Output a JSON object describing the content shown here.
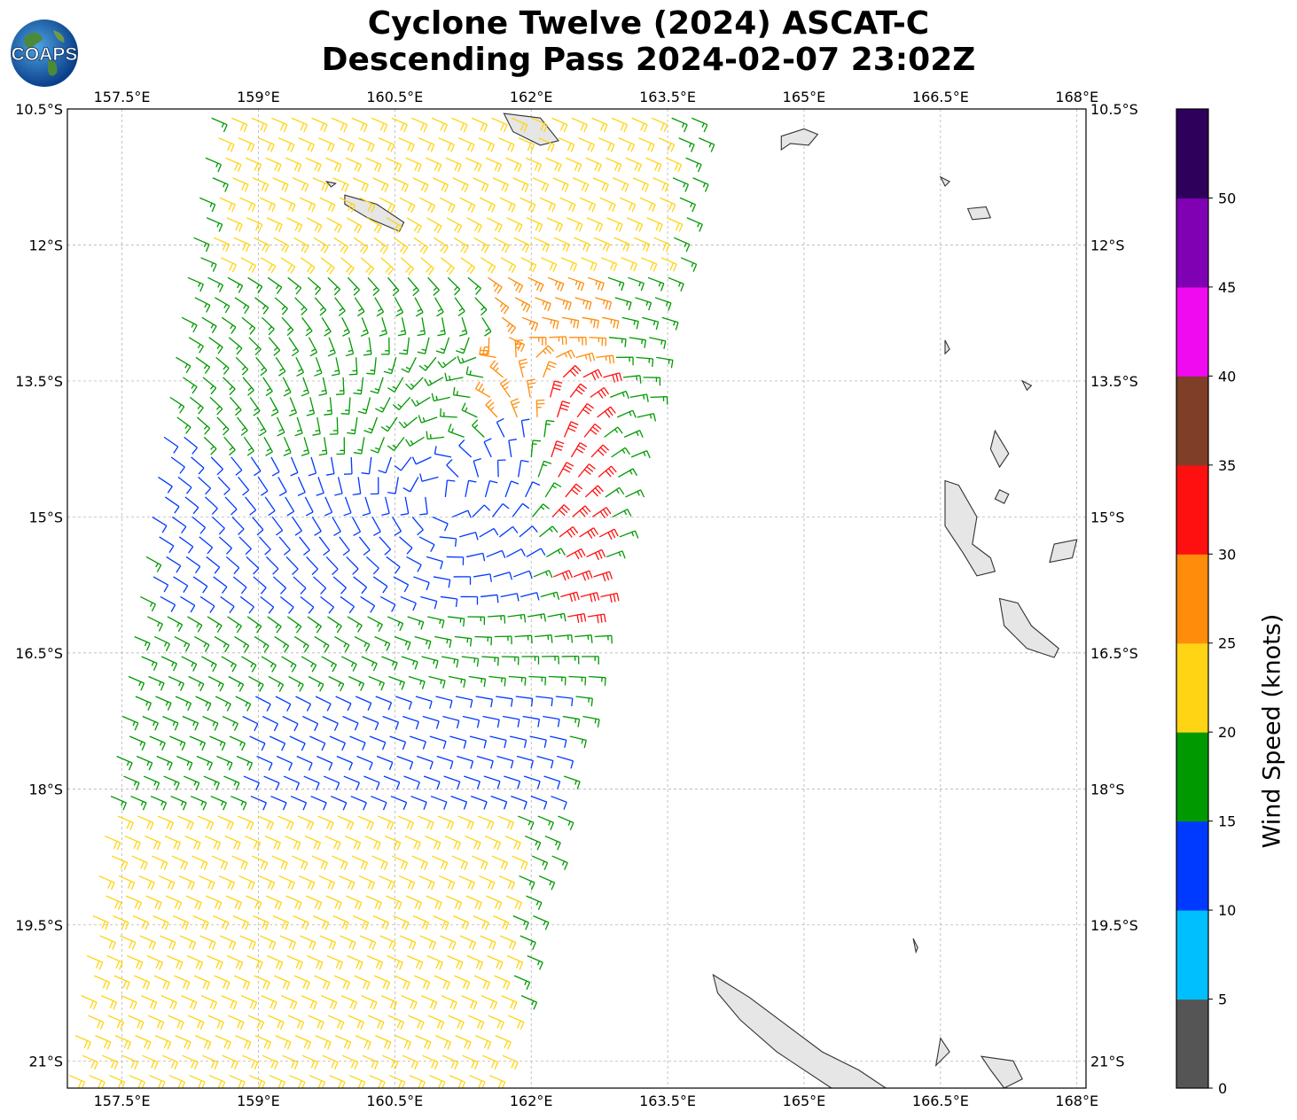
{
  "header": {
    "title_line1": "Cyclone Twelve (2024) ASCAT-C",
    "title_line2": "Descending Pass 2024-02-07 23:02Z",
    "logo_text": "COAPS"
  },
  "map": {
    "lon_range": [
      156.9,
      168.1
    ],
    "lat_range": [
      -21.3,
      -10.5
    ],
    "lon_ticks": [
      "157.5°E",
      "159°E",
      "160.5°E",
      "162°E",
      "163.5°E",
      "165°E",
      "166.5°E",
      "168°E"
    ],
    "lat_ticks": [
      "10.5°S",
      "12°S",
      "13.5°S",
      "15°S",
      "16.5°S",
      "18°S",
      "19.5°S",
      "21°S"
    ],
    "gridlines": true,
    "land_color": "#e6e6e6",
    "coastline_color": "#333333"
  },
  "colorbar": {
    "label": "Wind Speed (knots)",
    "tick_labels": [
      "0",
      "5",
      "10",
      "15",
      "20",
      "25",
      "30",
      "35",
      "40",
      "45",
      "50"
    ],
    "bins": [
      {
        "min": 0,
        "max": 5,
        "color": "#555555"
      },
      {
        "min": 5,
        "max": 10,
        "color": "#00bfff"
      },
      {
        "min": 10,
        "max": 15,
        "color": "#0039ff"
      },
      {
        "min": 15,
        "max": 20,
        "color": "#009900"
      },
      {
        "min": 20,
        "max": 25,
        "color": "#ffd414"
      },
      {
        "min": 25,
        "max": 30,
        "color": "#ff8c0a"
      },
      {
        "min": 30,
        "max": 35,
        "color": "#ff1010"
      },
      {
        "min": 35,
        "max": 40,
        "color": "#7f3e28"
      },
      {
        "min": 40,
        "max": 45,
        "color": "#f00af0"
      },
      {
        "min": 45,
        "max": 50,
        "color": "#8000b4"
      },
      {
        "min": 50,
        "max": 55,
        "color": "#2e005c"
      }
    ]
  },
  "chart_data": {
    "type": "wind-barb-field",
    "units": "knots",
    "circulation_center": {
      "lon": 161.0,
      "lat": -14.8
    },
    "swath": {
      "lon_east_edge_north": 164.0,
      "lon_east_edge_south": 161.7,
      "lon_west_edge_north": 158.5,
      "lon_west_edge_south": 156.9
    },
    "wind_regions": [
      {
        "description_speed_knots": "5-10",
        "lat_range": [
          -14.2,
          -15.2
        ],
        "lon_range": [
          159.8,
          161.5
        ]
      },
      {
        "description_speed_knots": "10-15",
        "lat_range": [
          -14.0,
          -16.0
        ],
        "lon_range": [
          157.8,
          162.0
        ]
      },
      {
        "description_speed_knots": "10-15",
        "lat_range": [
          -16.9,
          -18.3
        ],
        "lon_range": [
          158.8,
          162.3
        ]
      },
      {
        "description_speed_knots": "15-20",
        "lat_range": [
          -12.3,
          -14.3
        ],
        "lon_range": [
          158.2,
          161.5
        ]
      },
      {
        "description_speed_knots": "20-25",
        "lat_range": [
          -10.5,
          -12.3
        ],
        "lon_range": [
          158.5,
          163.5
        ]
      },
      {
        "description_speed_knots": "20-25",
        "lat_range": [
          -18.2,
          -21.3
        ],
        "lon_range": [
          156.9,
          161.8
        ]
      },
      {
        "description_speed_knots": "25-30",
        "lat_range": [
          -12.3,
          -14.0
        ],
        "lon_range": [
          161.5,
          162.8
        ]
      },
      {
        "description_speed_knots": "30-35",
        "lat_range": [
          -13.3,
          -16.2
        ],
        "lon_range": [
          162.2,
          162.8
        ]
      }
    ]
  }
}
